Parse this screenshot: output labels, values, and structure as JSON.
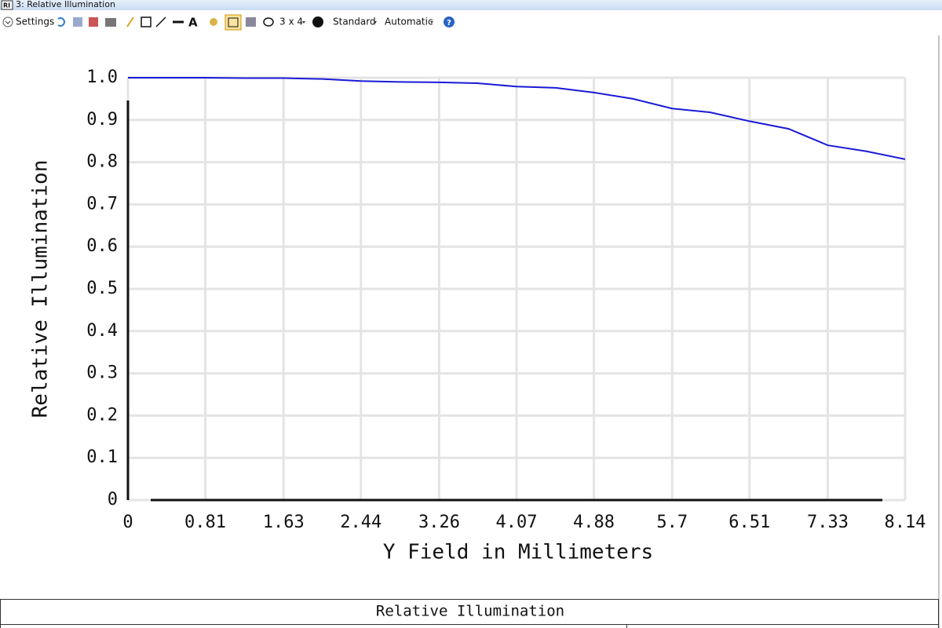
{
  "window": {
    "title": "3: Relative Illumination",
    "toolbar": {
      "settings": "Settings",
      "layout": "3 x 4",
      "style": "Standard",
      "scale": "Automatic"
    }
  },
  "chart_data": {
    "type": "line",
    "x_label": "Y Field in Millimeters",
    "y_label": "Relative Illumination",
    "x": [
      0,
      0.41,
      0.81,
      1.22,
      1.63,
      2.04,
      2.44,
      2.85,
      3.26,
      3.66,
      4.07,
      4.48,
      4.88,
      5.29,
      5.7,
      6.1,
      6.51,
      6.92,
      7.33,
      7.73,
      8.14
    ],
    "series": [
      {
        "name": null,
        "color": "#1a1ad6",
        "values": [
          1.0,
          1.0,
          1.0,
          0.999,
          0.999,
          0.997,
          0.992,
          0.99,
          0.989,
          0.987,
          0.979,
          0.976,
          0.965,
          0.95,
          0.927,
          0.918,
          0.897,
          0.879,
          0.84,
          0.826,
          0.807
        ]
      }
    ],
    "xlim": [
      0,
      8.14
    ],
    "xticks": [
      0,
      0.81,
      1.63,
      2.44,
      3.26,
      4.07,
      4.88,
      5.7,
      6.51,
      7.33,
      8.14
    ],
    "ylim": [
      0,
      1
    ],
    "yticks": [
      0,
      0.1,
      0.2,
      0.3,
      0.4,
      0.5,
      0.6,
      0.7,
      0.8,
      0.9,
      {
        "value": 1,
        "label": "1.0"
      }
    ],
    "grid": true
  },
  "footer": {
    "title": "Relative Illumination"
  }
}
